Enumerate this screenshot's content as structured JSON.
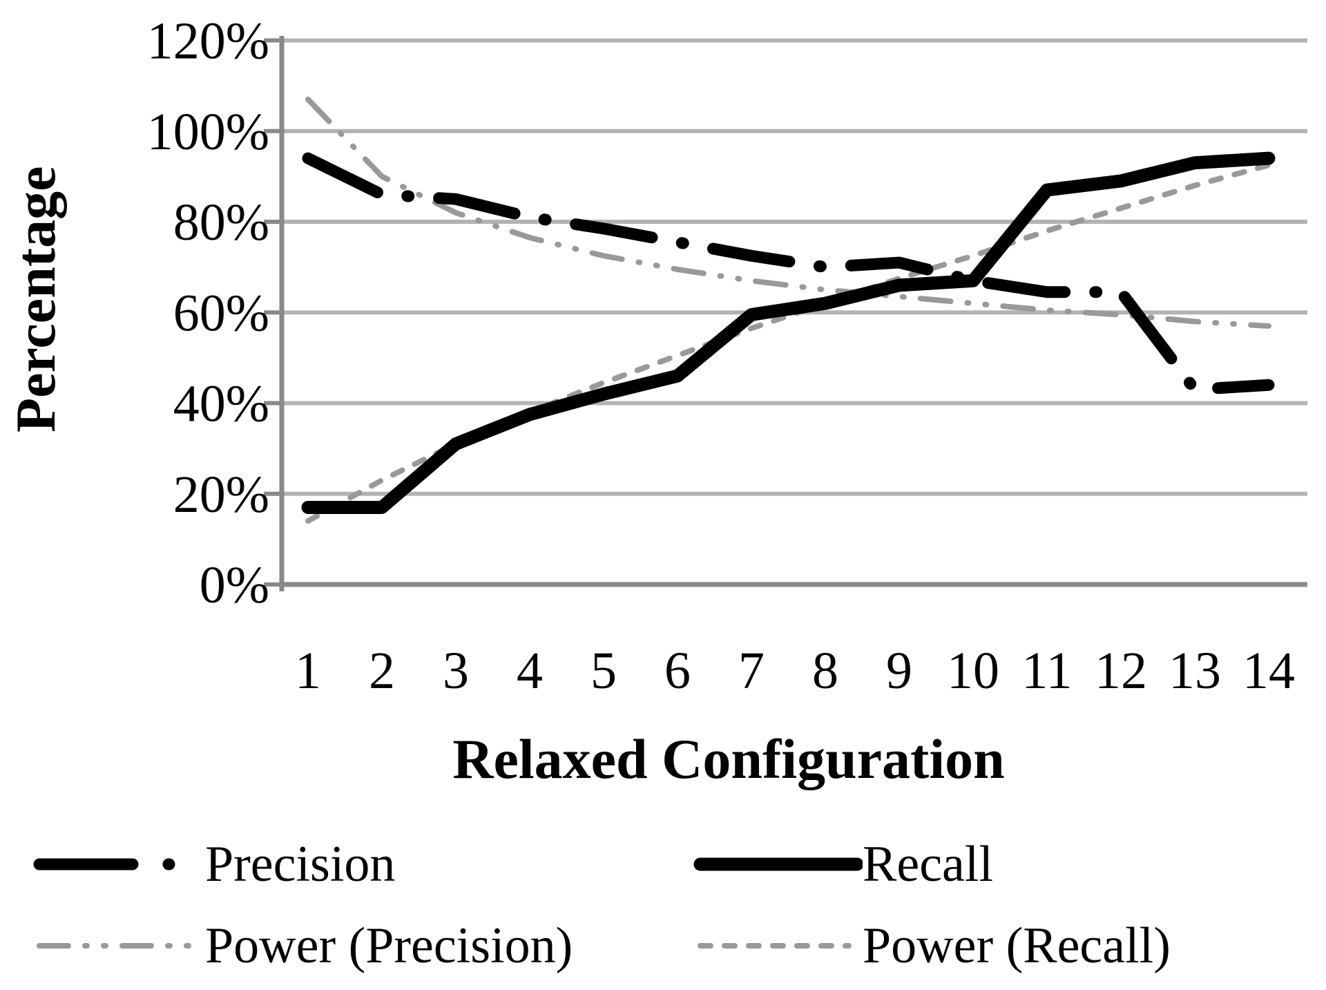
{
  "chart_data": {
    "type": "line",
    "title": "",
    "xlabel": "Relaxed Configuration",
    "ylabel": "Percentage",
    "x": [
      1,
      2,
      3,
      4,
      5,
      6,
      7,
      8,
      9,
      10,
      11,
      12,
      13,
      14
    ],
    "x_tick_labels": [
      "1",
      "2",
      "3",
      "4",
      "5",
      "6",
      "7",
      "8",
      "9",
      "10",
      "11",
      "12",
      "13",
      "14"
    ],
    "y_tick_labels": [
      "0%",
      "20%",
      "40%",
      "60%",
      "80%",
      "100%",
      "120%"
    ],
    "ylim": [
      0,
      120
    ],
    "ytick_step": 20,
    "grid": "horizontal",
    "legend_position": "bottom",
    "colors": {
      "series_black": "#000000",
      "series_gray": "#999999",
      "gridline": "#b3b3b3",
      "axis": "#898989",
      "background": "#ffffff"
    },
    "series": [
      {
        "name": "Power (Precision)",
        "id": "power_precision",
        "style": "long-dash-dot-dot",
        "color": "#999999",
        "values": [
          107,
          90,
          82,
          76.5,
          72.5,
          69.5,
          67,
          65,
          63.5,
          62,
          60.5,
          59.5,
          58,
          57
        ]
      },
      {
        "name": "Power (Recall)",
        "id": "power_recall",
        "style": "dashed",
        "color": "#999999",
        "values": [
          14,
          23,
          31,
          38,
          44.5,
          50.5,
          56.5,
          62,
          67.5,
          72.5,
          78,
          83,
          88,
          92.5
        ]
      },
      {
        "name": "Precision",
        "id": "precision",
        "style": "thick-dash-dot",
        "color": "#000000",
        "values": [
          94,
          86,
          85,
          81,
          78.5,
          75.5,
          72.5,
          70,
          71,
          67,
          64.5,
          64.5,
          43,
          44
        ]
      },
      {
        "name": "Recall",
        "id": "recall",
        "style": "thick-solid",
        "color": "#000000",
        "values": [
          17,
          17,
          31,
          37.5,
          42,
          46,
          59.5,
          62,
          66,
          67,
          87,
          89,
          93,
          94
        ]
      }
    ],
    "legend_items": [
      {
        "label": "Precision",
        "series_id": "precision"
      },
      {
        "label": "Recall",
        "series_id": "recall"
      },
      {
        "label": "Power (Precision)",
        "series_id": "power_precision"
      },
      {
        "label": "Power (Recall)",
        "series_id": "power_recall"
      }
    ]
  }
}
